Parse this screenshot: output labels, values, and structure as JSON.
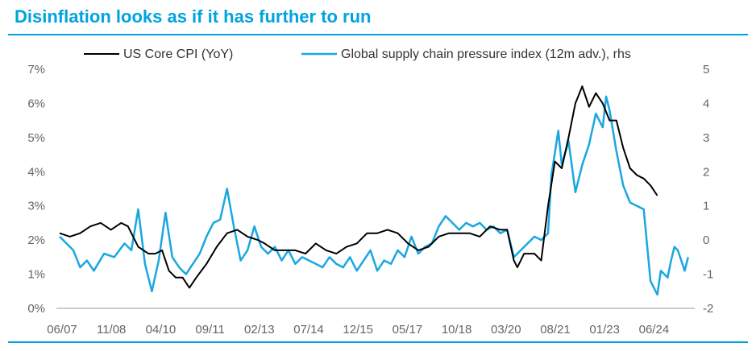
{
  "title": "Disinflation looks as if it has further to run",
  "chart_data": {
    "type": "line",
    "title": "Disinflation looks as if it has further to run",
    "x_tick_labels": [
      "06/07",
      "11/08",
      "04/10",
      "09/11",
      "02/13",
      "07/14",
      "12/15",
      "05/17",
      "10/18",
      "03/20",
      "08/21",
      "01/23",
      "06/24"
    ],
    "x_range": [
      2007.0,
      2025.5
    ],
    "y_left": {
      "range": [
        0,
        7
      ],
      "ticks": [
        "0%",
        "1%",
        "2%",
        "3%",
        "4%",
        "5%",
        "6%",
        "7%"
      ]
    },
    "y_right": {
      "range": [
        -2,
        5
      ],
      "ticks": [
        "-2",
        "-1",
        "0",
        "1",
        "2",
        "3",
        "4",
        "5"
      ]
    },
    "grid": false,
    "legend_placement": "top",
    "series": [
      {
        "name": "US Core CPI (YoY)",
        "axis": "left",
        "color": "#000000",
        "points": [
          [
            2007.0,
            2.2
          ],
          [
            2007.3,
            2.1
          ],
          [
            2007.6,
            2.2
          ],
          [
            2007.9,
            2.4
          ],
          [
            2008.2,
            2.5
          ],
          [
            2008.5,
            2.3
          ],
          [
            2008.8,
            2.5
          ],
          [
            2009.0,
            2.4
          ],
          [
            2009.3,
            1.8
          ],
          [
            2009.6,
            1.6
          ],
          [
            2009.8,
            1.6
          ],
          [
            2010.0,
            1.7
          ],
          [
            2010.2,
            1.1
          ],
          [
            2010.4,
            0.9
          ],
          [
            2010.6,
            0.9
          ],
          [
            2010.8,
            0.6
          ],
          [
            2011.0,
            0.9
          ],
          [
            2011.3,
            1.3
          ],
          [
            2011.6,
            1.8
          ],
          [
            2011.9,
            2.2
          ],
          [
            2012.2,
            2.3
          ],
          [
            2012.5,
            2.1
          ],
          [
            2012.8,
            2.0
          ],
          [
            2013.0,
            1.9
          ],
          [
            2013.3,
            1.7
          ],
          [
            2013.6,
            1.7
          ],
          [
            2013.9,
            1.7
          ],
          [
            2014.2,
            1.6
          ],
          [
            2014.5,
            1.9
          ],
          [
            2014.8,
            1.7
          ],
          [
            2015.1,
            1.6
          ],
          [
            2015.4,
            1.8
          ],
          [
            2015.7,
            1.9
          ],
          [
            2016.0,
            2.2
          ],
          [
            2016.3,
            2.2
          ],
          [
            2016.6,
            2.3
          ],
          [
            2016.9,
            2.2
          ],
          [
            2017.2,
            1.9
          ],
          [
            2017.5,
            1.7
          ],
          [
            2017.8,
            1.8
          ],
          [
            2018.1,
            2.1
          ],
          [
            2018.4,
            2.2
          ],
          [
            2018.7,
            2.2
          ],
          [
            2019.0,
            2.2
          ],
          [
            2019.3,
            2.1
          ],
          [
            2019.6,
            2.4
          ],
          [
            2019.9,
            2.3
          ],
          [
            2020.1,
            2.3
          ],
          [
            2020.3,
            1.4
          ],
          [
            2020.4,
            1.2
          ],
          [
            2020.6,
            1.6
          ],
          [
            2020.9,
            1.6
          ],
          [
            2021.1,
            1.4
          ],
          [
            2021.3,
            3.0
          ],
          [
            2021.5,
            4.3
          ],
          [
            2021.7,
            4.1
          ],
          [
            2021.9,
            5.0
          ],
          [
            2022.1,
            6.0
          ],
          [
            2022.3,
            6.5
          ],
          [
            2022.5,
            5.9
          ],
          [
            2022.7,
            6.3
          ],
          [
            2022.9,
            6.0
          ],
          [
            2023.1,
            5.5
          ],
          [
            2023.3,
            5.5
          ],
          [
            2023.5,
            4.7
          ],
          [
            2023.7,
            4.1
          ],
          [
            2023.9,
            3.9
          ],
          [
            2024.1,
            3.8
          ],
          [
            2024.3,
            3.6
          ],
          [
            2024.5,
            3.3
          ]
        ]
      },
      {
        "name": "Global supply chain pressure index (12m adv.), rhs",
        "axis": "right",
        "color": "#1aa7e0",
        "points": [
          [
            2007.0,
            0.1
          ],
          [
            2007.2,
            -0.1
          ],
          [
            2007.4,
            -0.3
          ],
          [
            2007.6,
            -0.8
          ],
          [
            2007.8,
            -0.6
          ],
          [
            2008.0,
            -0.9
          ],
          [
            2008.3,
            -0.4
          ],
          [
            2008.6,
            -0.5
          ],
          [
            2008.9,
            -0.1
          ],
          [
            2009.1,
            -0.3
          ],
          [
            2009.3,
            0.9
          ],
          [
            2009.5,
            -0.7
          ],
          [
            2009.7,
            -1.5
          ],
          [
            2009.9,
            -0.6
          ],
          [
            2010.1,
            0.8
          ],
          [
            2010.3,
            -0.5
          ],
          [
            2010.5,
            -0.8
          ],
          [
            2010.7,
            -1.0
          ],
          [
            2010.9,
            -0.7
          ],
          [
            2011.1,
            -0.4
          ],
          [
            2011.3,
            0.1
          ],
          [
            2011.5,
            0.5
          ],
          [
            2011.7,
            0.6
          ],
          [
            2011.9,
            1.5
          ],
          [
            2012.1,
            0.4
          ],
          [
            2012.3,
            -0.6
          ],
          [
            2012.5,
            -0.3
          ],
          [
            2012.7,
            0.4
          ],
          [
            2012.9,
            -0.2
          ],
          [
            2013.1,
            -0.4
          ],
          [
            2013.3,
            -0.2
          ],
          [
            2013.5,
            -0.6
          ],
          [
            2013.7,
            -0.3
          ],
          [
            2013.9,
            -0.7
          ],
          [
            2014.1,
            -0.5
          ],
          [
            2014.3,
            -0.6
          ],
          [
            2014.5,
            -0.7
          ],
          [
            2014.7,
            -0.8
          ],
          [
            2014.9,
            -0.5
          ],
          [
            2015.1,
            -0.7
          ],
          [
            2015.3,
            -0.8
          ],
          [
            2015.5,
            -0.5
          ],
          [
            2015.7,
            -0.9
          ],
          [
            2015.9,
            -0.6
          ],
          [
            2016.1,
            -0.3
          ],
          [
            2016.3,
            -0.9
          ],
          [
            2016.5,
            -0.6
          ],
          [
            2016.7,
            -0.7
          ],
          [
            2016.9,
            -0.3
          ],
          [
            2017.1,
            -0.5
          ],
          [
            2017.3,
            0.1
          ],
          [
            2017.5,
            -0.4
          ],
          [
            2017.7,
            -0.2
          ],
          [
            2017.9,
            -0.1
          ],
          [
            2018.1,
            0.4
          ],
          [
            2018.3,
            0.7
          ],
          [
            2018.5,
            0.5
          ],
          [
            2018.7,
            0.3
          ],
          [
            2018.9,
            0.5
          ],
          [
            2019.1,
            0.4
          ],
          [
            2019.3,
            0.5
          ],
          [
            2019.5,
            0.3
          ],
          [
            2019.7,
            0.4
          ],
          [
            2019.9,
            0.2
          ],
          [
            2020.1,
            0.3
          ],
          [
            2020.3,
            -0.5
          ],
          [
            2020.5,
            -0.3
          ],
          [
            2020.7,
            -0.1
          ],
          [
            2020.9,
            0.1
          ],
          [
            2021.1,
            0.0
          ],
          [
            2021.3,
            0.2
          ],
          [
            2021.4,
            1.9
          ],
          [
            2021.6,
            3.2
          ],
          [
            2021.7,
            2.2
          ],
          [
            2021.9,
            2.9
          ],
          [
            2022.1,
            1.4
          ],
          [
            2022.3,
            2.2
          ],
          [
            2022.5,
            2.8
          ],
          [
            2022.7,
            3.7
          ],
          [
            2022.9,
            3.3
          ],
          [
            2023.0,
            4.2
          ],
          [
            2023.1,
            3.8
          ],
          [
            2023.3,
            2.6
          ],
          [
            2023.5,
            1.6
          ],
          [
            2023.7,
            1.1
          ],
          [
            2023.9,
            1.0
          ],
          [
            2024.1,
            0.9
          ],
          [
            2024.3,
            -1.2
          ],
          [
            2024.5,
            -1.6
          ],
          [
            2024.6,
            -0.9
          ],
          [
            2024.8,
            -1.1
          ],
          [
            2024.9,
            -0.6
          ],
          [
            2025.0,
            -0.2
          ],
          [
            2025.1,
            -0.3
          ],
          [
            2025.2,
            -0.6
          ],
          [
            2025.3,
            -0.9
          ],
          [
            2025.4,
            -0.5
          ]
        ]
      }
    ]
  }
}
